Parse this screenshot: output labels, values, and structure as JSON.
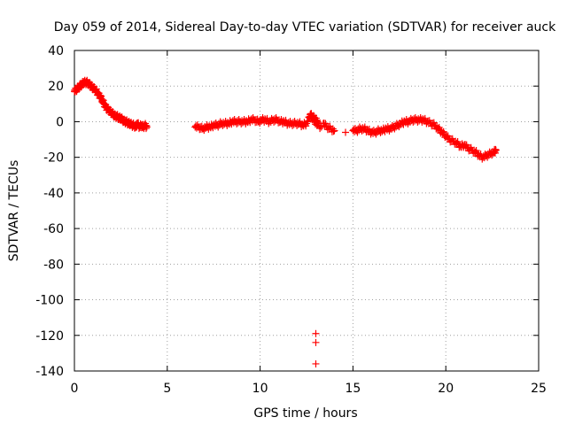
{
  "chart_data": {
    "type": "scatter",
    "title": "Day 059 of 2014, Sidereal Day-to-day VTEC variation (SDTVAR) for receiver auck",
    "xlabel": "GPS time / hours",
    "ylabel": "SDTVAR / TECUs",
    "xlim": [
      0,
      25
    ],
    "ylim": [
      -140,
      40
    ],
    "xticks": [
      0,
      5,
      10,
      15,
      20,
      25
    ],
    "yticks": [
      40,
      20,
      0,
      -20,
      -40,
      -60,
      -80,
      -100,
      -120,
      -140
    ],
    "grid": true,
    "series": [
      {
        "name": "SDTVAR",
        "color": "#ff0000",
        "marker": "+",
        "segments": [
          {
            "x": [
              0.0,
              0.1,
              0.2,
              0.3,
              0.4,
              0.5,
              0.6,
              0.7,
              0.8,
              0.9,
              1.0,
              1.1,
              1.2,
              1.3,
              1.4,
              1.5,
              1.6,
              1.7,
              1.8,
              1.9,
              2.0,
              2.1,
              2.2,
              2.3,
              2.4,
              2.5,
              2.6,
              2.7,
              2.8,
              2.9,
              3.0,
              3.1,
              3.2,
              3.3,
              3.4,
              3.5,
              3.6,
              3.7,
              3.8,
              3.9
            ],
            "y": [
              17,
              18,
              19,
              20,
              21,
              22,
              22,
              22,
              21,
              20,
              19,
              18,
              17,
              15,
              14,
              12,
              10,
              8,
              7,
              6,
              5,
              4,
              3,
              3,
              2,
              2,
              1,
              0,
              0,
              -1,
              -1,
              -2,
              -2,
              -3,
              -1,
              -3,
              -2,
              -3,
              -2,
              -3
            ]
          },
          {
            "x": [
              6.5,
              6.7,
              6.9,
              7.1,
              7.3,
              7.5,
              7.7,
              7.9,
              8.1,
              8.3,
              8.5,
              8.7,
              8.9,
              9.1,
              9.3,
              9.5,
              9.7,
              9.9,
              10.1,
              10.3,
              10.5,
              10.7,
              10.9,
              11.1,
              11.3,
              11.5,
              11.7,
              11.9,
              12.1,
              12.3,
              12.5,
              12.7,
              12.9,
              13.1,
              13.3
            ],
            "y": [
              -3,
              -3,
              -4,
              -3,
              -3,
              -2,
              -2,
              -1,
              -1,
              -1,
              0,
              0,
              0,
              0,
              0,
              1,
              1,
              0,
              1,
              1,
              0,
              1,
              1,
              0,
              0,
              -1,
              -1,
              -1,
              -1,
              -2,
              -1,
              3,
              1,
              -2,
              -3
            ]
          },
          {
            "x": [
              12.7,
              12.8,
              12.9,
              13.0,
              13.1
            ],
            "y": [
              4,
              3,
              2,
              1,
              0
            ]
          },
          {
            "x": [
              13.4,
              13.6,
              13.8,
              14.0,
              14.6
            ],
            "y": [
              -1,
              -3,
              -4,
              -5,
              -6
            ]
          },
          {
            "x": [
              15.0,
              15.2,
              15.4,
              15.6,
              15.8,
              16.0,
              16.2,
              16.4,
              16.6,
              16.8,
              17.0,
              17.2,
              17.4,
              17.6,
              17.8,
              18.0,
              18.2,
              18.4,
              18.6,
              18.8,
              19.0,
              19.2,
              19.4,
              19.6,
              19.8,
              20.0,
              20.2,
              20.4,
              20.6,
              20.8,
              21.0,
              21.2,
              21.4,
              21.6,
              21.8,
              22.0,
              22.2,
              22.4,
              22.6,
              22.7
            ],
            "y": [
              -5,
              -5,
              -4,
              -4,
              -5,
              -6,
              -6,
              -5,
              -5,
              -4,
              -4,
              -3,
              -2,
              -1,
              0,
              0,
              1,
              1,
              1,
              1,
              0,
              -1,
              -2,
              -4,
              -6,
              -8,
              -10,
              -11,
              -12,
              -14,
              -13,
              -15,
              -16,
              -17,
              -19,
              -20,
              -19,
              -18,
              -17,
              -16
            ]
          },
          {
            "x": [
              13.0,
              13.0,
              13.0
            ],
            "y": [
              -119,
              -124,
              -136
            ]
          }
        ]
      }
    ]
  }
}
